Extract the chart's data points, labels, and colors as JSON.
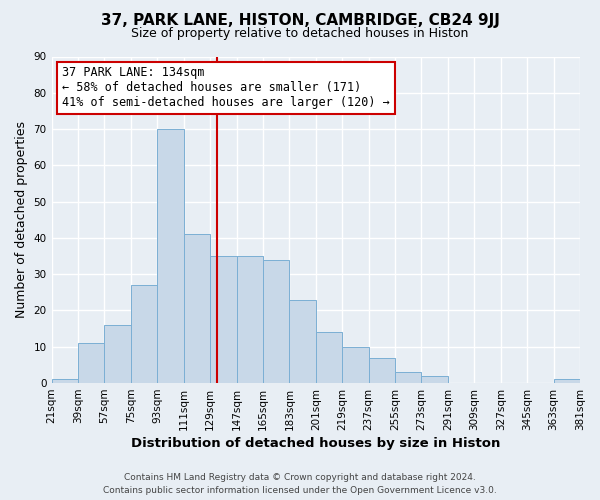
{
  "title": "37, PARK LANE, HISTON, CAMBRIDGE, CB24 9JJ",
  "subtitle": "Size of property relative to detached houses in Histon",
  "xlabel": "Distribution of detached houses by size in Histon",
  "ylabel": "Number of detached properties",
  "footer_lines": [
    "Contains HM Land Registry data © Crown copyright and database right 2024.",
    "Contains public sector information licensed under the Open Government Licence v3.0."
  ],
  "bin_edges": [
    21,
    39,
    57,
    75,
    93,
    111,
    129,
    147,
    165,
    183,
    201,
    219,
    237,
    255,
    273,
    291,
    309,
    327,
    345,
    363,
    381
  ],
  "bar_heights": [
    1,
    11,
    16,
    27,
    70,
    41,
    35,
    35,
    34,
    23,
    14,
    10,
    7,
    3,
    2,
    0,
    0,
    0,
    0,
    1
  ],
  "bar_color": "#c8d8e8",
  "bar_edgecolor": "#7bafd4",
  "x_tick_labels": [
    "21sqm",
    "39sqm",
    "57sqm",
    "75sqm",
    "93sqm",
    "111sqm",
    "129sqm",
    "147sqm",
    "165sqm",
    "183sqm",
    "201sqm",
    "219sqm",
    "237sqm",
    "255sqm",
    "273sqm",
    "291sqm",
    "309sqm",
    "327sqm",
    "345sqm",
    "363sqm",
    "381sqm"
  ],
  "ylim": [
    0,
    90
  ],
  "yticks": [
    0,
    10,
    20,
    30,
    40,
    50,
    60,
    70,
    80,
    90
  ],
  "vline_x": 134,
  "vline_color": "#cc0000",
  "annotation_line1": "37 PARK LANE: 134sqm",
  "annotation_line2": "← 58% of detached houses are smaller (171)",
  "annotation_line3": "41% of semi-detached houses are larger (120) →",
  "bg_color": "#e8eef4",
  "grid_color": "#ffffff",
  "title_fontsize": 11,
  "subtitle_fontsize": 9,
  "axis_label_fontsize": 9,
  "tick_fontsize": 7.5,
  "annotation_fontsize": 8.5,
  "footer_fontsize": 6.5
}
